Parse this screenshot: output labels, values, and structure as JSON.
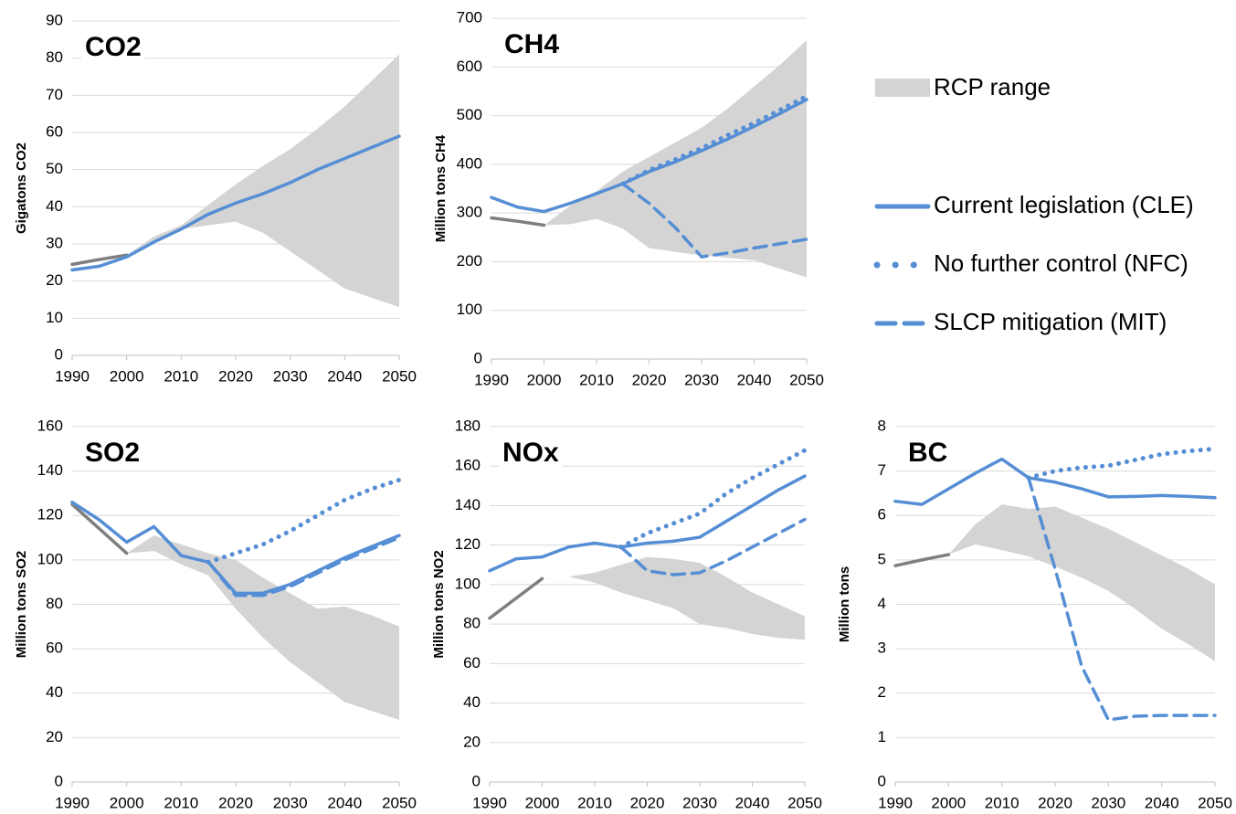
{
  "chart_data": [
    {
      "type": "line",
      "title": "CO2",
      "y_label": "Gigatons CO2",
      "x": [
        1990,
        1995,
        2000,
        2005,
        2010,
        2015,
        2020,
        2025,
        2030,
        2035,
        2040,
        2045,
        2050
      ],
      "xlim": [
        1990,
        2050
      ],
      "xticks": [
        1990,
        2000,
        2010,
        2020,
        2030,
        2040,
        2050
      ],
      "ylim": [
        0,
        90
      ],
      "yticks": [
        0,
        10,
        20,
        30,
        40,
        50,
        60,
        70,
        80,
        90
      ],
      "grid": true,
      "range": {
        "color": "#d4d4d4",
        "low": [
          null,
          null,
          27,
          31,
          34,
          35,
          36,
          33,
          28,
          23,
          18,
          15.5,
          13
        ],
        "high": [
          null,
          null,
          27,
          32,
          35,
          40.5,
          46,
          51,
          55.5,
          61,
          67,
          74,
          81
        ]
      },
      "series": [
        {
          "color": "#7f7f7f",
          "style": "solid",
          "values": [
            24.5,
            25.8,
            27,
            null,
            null,
            null,
            null,
            null,
            null,
            null,
            null,
            null,
            null
          ]
        },
        {
          "color": "#558ed5",
          "style": "solid",
          "values": [
            23,
            24,
            26.5,
            30.5,
            34,
            38,
            41,
            43.5,
            46.5,
            50,
            53,
            56,
            59
          ]
        }
      ]
    },
    {
      "type": "line",
      "title": "CH4",
      "y_label": "Million tons CH4",
      "x": [
        1990,
        1995,
        2000,
        2005,
        2010,
        2015,
        2020,
        2025,
        2030,
        2035,
        2040,
        2045,
        2050
      ],
      "xlim": [
        1990,
        2050
      ],
      "xticks": [
        1990,
        2000,
        2010,
        2020,
        2030,
        2040,
        2050
      ],
      "ylim": [
        0,
        700
      ],
      "yticks": [
        0,
        100,
        200,
        300,
        400,
        500,
        600,
        700
      ],
      "grid": true,
      "range": {
        "name": "RCP range",
        "color": "#d4d4d4",
        "low": [
          null,
          null,
          275,
          277,
          288,
          268,
          228,
          220,
          213,
          208,
          203,
          185,
          168
        ],
        "high": [
          null,
          null,
          275,
          315,
          345,
          385,
          415,
          445,
          475,
          515,
          560,
          605,
          655
        ]
      },
      "series": [
        {
          "color": "#7f7f7f",
          "style": "solid",
          "values": [
            290,
            283,
            275,
            null,
            null,
            null,
            null,
            null,
            null,
            null,
            null,
            null,
            null
          ]
        },
        {
          "name": "Current legislation (CLE)",
          "color": "#558ed5",
          "style": "solid",
          "values": [
            332,
            312,
            303,
            320,
            340,
            360,
            385,
            405,
            428,
            452,
            478,
            505,
            533
          ]
        },
        {
          "name": "No further control (NFC)",
          "color": "#558ed5",
          "style": "dotted",
          "values": [
            null,
            null,
            null,
            null,
            null,
            360,
            388,
            410,
            433,
            460,
            485,
            512,
            540
          ]
        },
        {
          "name": "SLCP mitigation (MIT)",
          "color": "#558ed5",
          "style": "dashed",
          "values": [
            null,
            null,
            null,
            null,
            null,
            360,
            320,
            270,
            210,
            218,
            228,
            237,
            246
          ]
        }
      ]
    },
    {
      "type": "line",
      "title": "SO2",
      "y_label": "Million tons SO2",
      "x": [
        1990,
        1995,
        2000,
        2005,
        2010,
        2015,
        2020,
        2025,
        2030,
        2035,
        2040,
        2045,
        2050
      ],
      "xlim": [
        1990,
        2050
      ],
      "xticks": [
        1990,
        2000,
        2010,
        2020,
        2030,
        2040,
        2050
      ],
      "ylim": [
        0,
        160
      ],
      "yticks": [
        0,
        20,
        40,
        60,
        80,
        100,
        120,
        140,
        160
      ],
      "grid": true,
      "range": {
        "color": "#d4d4d4",
        "low": [
          null,
          null,
          103,
          104,
          98,
          93,
          78,
          65,
          54,
          45,
          36,
          32,
          28
        ],
        "high": [
          null,
          null,
          103,
          111,
          107,
          103,
          100,
          92,
          85,
          78,
          79,
          75,
          70
        ]
      },
      "series": [
        {
          "color": "#7f7f7f",
          "style": "solid",
          "values": [
            125,
            114,
            103,
            null,
            null,
            null,
            null,
            null,
            null,
            null,
            null,
            null,
            null
          ]
        },
        {
          "color": "#558ed5",
          "style": "solid",
          "values": [
            126,
            118,
            108,
            115,
            102,
            99,
            85,
            85,
            89,
            95,
            101,
            106,
            111
          ]
        },
        {
          "color": "#558ed5",
          "style": "dotted",
          "values": [
            null,
            null,
            null,
            null,
            null,
            99,
            103,
            107,
            113,
            120,
            127,
            132,
            136
          ]
        },
        {
          "color": "#558ed5",
          "style": "dashed",
          "values": [
            null,
            null,
            null,
            null,
            null,
            99,
            84,
            84,
            88,
            94,
            100,
            105,
            110
          ]
        }
      ]
    },
    {
      "type": "line",
      "title": "NOx",
      "y_label": "Million tons NO2",
      "x": [
        1990,
        1995,
        2000,
        2005,
        2010,
        2015,
        2020,
        2025,
        2030,
        2035,
        2040,
        2045,
        2050
      ],
      "xlim": [
        1990,
        2050
      ],
      "xticks": [
        1990,
        2000,
        2010,
        2020,
        2030,
        2040,
        2050
      ],
      "ylim": [
        0,
        180
      ],
      "yticks": [
        0,
        20,
        40,
        60,
        80,
        100,
        120,
        140,
        160,
        180
      ],
      "grid": true,
      "range": {
        "color": "#d4d4d4",
        "low": [
          null,
          null,
          103,
          104,
          101,
          96,
          92,
          88,
          80,
          78,
          75,
          73,
          72
        ],
        "high": [
          null,
          null,
          103,
          104,
          106,
          110,
          114,
          113,
          111,
          104,
          96,
          90,
          84
        ]
      },
      "series": [
        {
          "color": "#7f7f7f",
          "style": "solid",
          "values": [
            83,
            93,
            103,
            null,
            null,
            null,
            null,
            null,
            null,
            null,
            null,
            null,
            null
          ]
        },
        {
          "color": "#558ed5",
          "style": "solid",
          "values": [
            107,
            113,
            114,
            119,
            121,
            119,
            121,
            122,
            124,
            132,
            140,
            148,
            155
          ]
        },
        {
          "color": "#558ed5",
          "style": "dotted",
          "values": [
            null,
            null,
            null,
            null,
            null,
            119,
            126,
            131,
            136,
            146,
            154,
            161,
            168
          ]
        },
        {
          "color": "#558ed5",
          "style": "dashed",
          "values": [
            null,
            null,
            null,
            null,
            null,
            119,
            107,
            105,
            106,
            112,
            119,
            126,
            133
          ]
        }
      ]
    },
    {
      "type": "line",
      "title": "BC",
      "y_label": "Million tons",
      "x": [
        1990,
        1995,
        2000,
        2005,
        2010,
        2015,
        2020,
        2025,
        2030,
        2035,
        2040,
        2045,
        2050
      ],
      "xlim": [
        1990,
        2050
      ],
      "xticks": [
        1990,
        2000,
        2010,
        2020,
        2030,
        2040,
        2050
      ],
      "ylim": [
        0,
        8
      ],
      "yticks": [
        0,
        1,
        2,
        3,
        4,
        5,
        6,
        7,
        8
      ],
      "grid": true,
      "range": {
        "color": "#d4d4d4",
        "low": [
          null,
          null,
          5.12,
          5.35,
          5.22,
          5.08,
          4.85,
          4.6,
          4.3,
          3.9,
          3.45,
          3.1,
          2.72
        ],
        "high": [
          null,
          null,
          5.12,
          5.8,
          6.25,
          6.15,
          6.2,
          5.95,
          5.7,
          5.4,
          5.1,
          4.8,
          4.45
        ]
      },
      "series": [
        {
          "color": "#7f7f7f",
          "style": "solid",
          "values": [
            4.87,
            5.0,
            5.12,
            null,
            null,
            null,
            null,
            null,
            null,
            null,
            null,
            null,
            null
          ]
        },
        {
          "color": "#558ed5",
          "style": "solid",
          "values": [
            6.32,
            6.25,
            6.6,
            6.95,
            7.27,
            6.85,
            6.75,
            6.6,
            6.42,
            6.43,
            6.45,
            6.43,
            6.4
          ]
        },
        {
          "color": "#558ed5",
          "style": "dotted",
          "values": [
            null,
            null,
            null,
            null,
            null,
            6.85,
            7.0,
            7.08,
            7.12,
            7.25,
            7.38,
            7.45,
            7.5
          ]
        },
        {
          "color": "#558ed5",
          "style": "dashed",
          "values": [
            null,
            null,
            null,
            null,
            null,
            6.85,
            4.8,
            2.6,
            1.4,
            1.48,
            1.5,
            1.5,
            1.5
          ]
        }
      ]
    }
  ]
}
